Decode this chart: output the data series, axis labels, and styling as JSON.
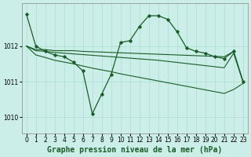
{
  "background_color": "#cceee8",
  "grid_color": "#aaddcc",
  "line_color": "#1a5c28",
  "xlabel": "Graphe pression niveau de la mer (hPa)",
  "xlabel_fontsize": 7,
  "tick_fontsize": 5.5,
  "xlim": [
    -0.5,
    23.5
  ],
  "ylim": [
    1009.55,
    1013.2
  ],
  "yticks": [
    1010,
    1011,
    1012
  ],
  "xticks": [
    0,
    1,
    2,
    3,
    4,
    5,
    6,
    7,
    8,
    9,
    10,
    11,
    12,
    13,
    14,
    15,
    16,
    17,
    18,
    19,
    20,
    21,
    22,
    23
  ],
  "main_y": [
    1012.9,
    1012.0,
    1011.85,
    1011.75,
    1011.7,
    1011.55,
    1011.3,
    1010.1,
    1010.65,
    1011.2,
    1012.1,
    1012.15,
    1012.55,
    1012.85,
    1012.85,
    1012.75,
    1012.4,
    1011.95,
    1011.85,
    1011.8,
    1011.7,
    1011.65,
    1011.85,
    1011.0
  ],
  "flat_upper": [
    1012.0,
    1011.9,
    1011.9,
    1011.87,
    1011.87,
    1011.87,
    1011.85,
    1011.84,
    1011.83,
    1011.82,
    1011.81,
    1011.8,
    1011.79,
    1011.78,
    1011.77,
    1011.76,
    1011.75,
    1011.74,
    1011.73,
    1011.72,
    1011.71,
    1011.7,
    1011.85,
    1011.0
  ],
  "flat_lower": [
    1012.0,
    1011.87,
    1011.85,
    1011.82,
    1011.8,
    1011.78,
    1011.76,
    1011.74,
    1011.72,
    1011.7,
    1011.68,
    1011.66,
    1011.64,
    1011.62,
    1011.6,
    1011.57,
    1011.54,
    1011.51,
    1011.48,
    1011.45,
    1011.42,
    1011.39,
    1011.8,
    1011.0
  ],
  "descending": [
    1012.0,
    1011.75,
    1011.68,
    1011.6,
    1011.55,
    1011.5,
    1011.44,
    1011.38,
    1011.33,
    1011.28,
    1011.22,
    1011.17,
    1011.12,
    1011.07,
    1011.02,
    1010.97,
    1010.92,
    1010.87,
    1010.82,
    1010.77,
    1010.72,
    1010.67,
    1010.78,
    1010.95
  ]
}
